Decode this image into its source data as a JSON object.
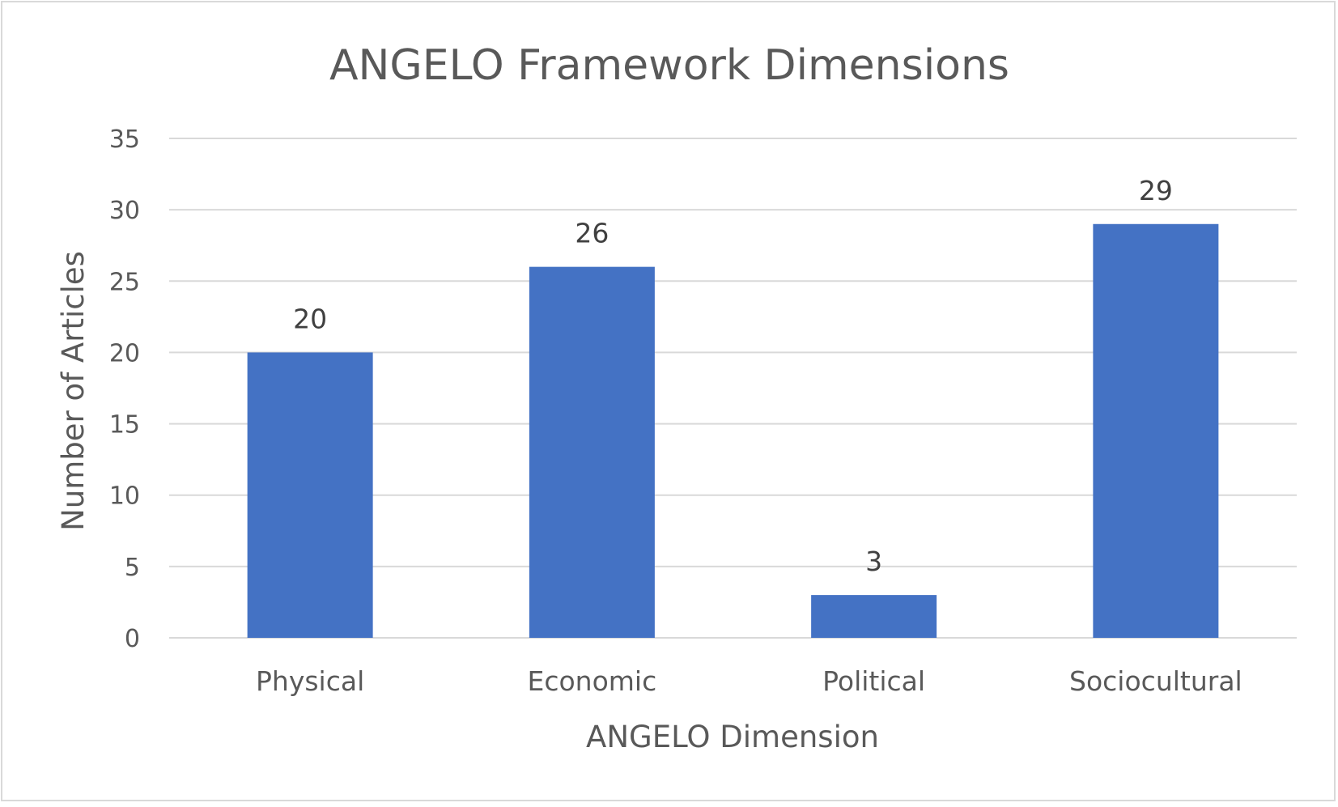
{
  "chart_data": {
    "type": "bar",
    "title": "ANGELO Framework Dimensions",
    "xlabel": "ANGELO Dimension",
    "ylabel": "Number of Articles",
    "categories": [
      "Physical",
      "Economic",
      "Political",
      "Sociocultural"
    ],
    "values": [
      20,
      26,
      3,
      29
    ],
    "ylim": [
      0,
      35
    ],
    "yticks": [
      0,
      5,
      10,
      15,
      20,
      25,
      30,
      35
    ],
    "grid": true,
    "legend": "none",
    "data_labels": true,
    "bar_color": "#4472C4",
    "gridline_color": "#d9d9d9"
  }
}
